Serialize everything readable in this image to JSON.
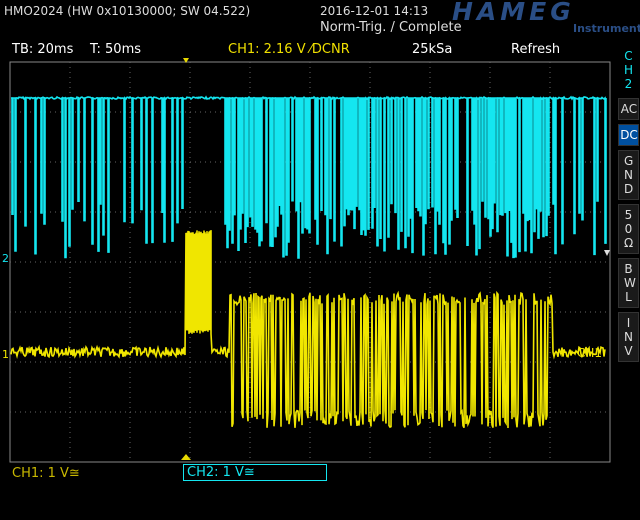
{
  "header": {
    "model": "HMO2024 (HW 0x10130000; SW 04.522)",
    "datetime": "2016-12-01 14:13",
    "trigger_status": "Norm-Trig. / Complete",
    "brand": "HAMEG",
    "brand_sub": "Instruments"
  },
  "status_bar": {
    "timebase": "TB: 20ms",
    "trigger_time": "T: 50ms",
    "trigger_level": "CH1: 2.16 V ⁄DCNR",
    "sample_rate": "25kSa",
    "mode": "Refresh"
  },
  "side_menu": {
    "channel": "CH2",
    "items": [
      "AC",
      "DC",
      "GND",
      "50 Ω",
      "BWL",
      "INV"
    ],
    "active": "DC"
  },
  "markers": {
    "ch2": "2",
    "ch1": "1",
    "ch1_label": "CH1"
  },
  "footer": {
    "ch1": "CH1: 1 V≅",
    "ch2": "CH2: 1 V≅"
  }
}
